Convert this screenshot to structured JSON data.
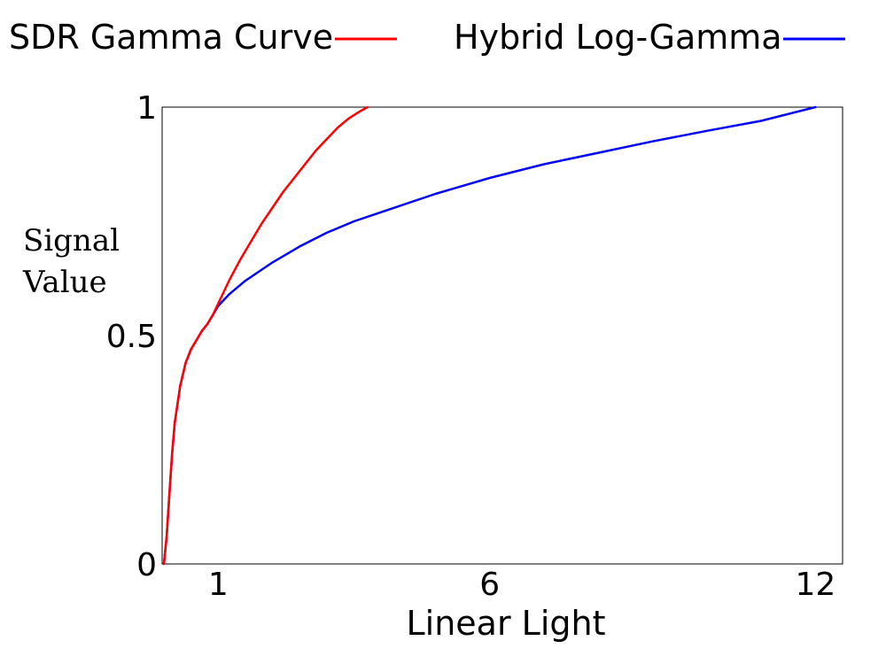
{
  "chart_data": {
    "type": "line",
    "title": "",
    "xlabel": "Linear Light",
    "ylabel_lines": [
      "Signal",
      "Value"
    ],
    "xlim": [
      0,
      12.5
    ],
    "ylim": [
      0,
      1
    ],
    "grid": false,
    "legend_position": "top",
    "x_ticks": [
      {
        "value": 1,
        "label": "1"
      },
      {
        "value": 6,
        "label": "6"
      },
      {
        "value": 12,
        "label": "12"
      }
    ],
    "y_ticks": [
      {
        "value": 0,
        "label": "0"
      },
      {
        "value": 0.5,
        "label": "0.5"
      },
      {
        "value": 1,
        "label": "1"
      }
    ],
    "series": [
      {
        "name": "SDR Gamma Curve",
        "color": "#ff0000",
        "x": [
          0,
          0.05,
          0.1,
          0.15,
          0.2,
          0.3,
          0.4,
          0.5,
          0.6,
          0.7,
          0.8,
          0.9,
          1.0,
          1.2,
          1.4,
          1.6,
          1.8,
          2.0,
          2.2,
          2.4,
          2.6,
          2.8,
          3.0,
          3.2,
          3.4,
          3.6,
          3.75
        ],
        "y": [
          0,
          0.06,
          0.15,
          0.24,
          0.31,
          0.39,
          0.44,
          0.47,
          0.49,
          0.51,
          0.525,
          0.545,
          0.57,
          0.62,
          0.665,
          0.705,
          0.745,
          0.78,
          0.815,
          0.845,
          0.875,
          0.905,
          0.93,
          0.955,
          0.975,
          0.99,
          1.0
        ]
      },
      {
        "name": "Hybrid Log-Gamma",
        "color": "#0000ff",
        "x": [
          0,
          0.05,
          0.1,
          0.15,
          0.2,
          0.3,
          0.4,
          0.5,
          0.6,
          0.7,
          0.8,
          0.9,
          1.0,
          1.2,
          1.5,
          2.0,
          2.5,
          3.0,
          3.5,
          4.0,
          5.0,
          6.0,
          7.0,
          8.0,
          9.0,
          10.0,
          11.0,
          12.0
        ],
        "y": [
          0,
          0.06,
          0.15,
          0.24,
          0.31,
          0.39,
          0.44,
          0.47,
          0.49,
          0.51,
          0.525,
          0.545,
          0.565,
          0.59,
          0.62,
          0.66,
          0.695,
          0.725,
          0.75,
          0.77,
          0.81,
          0.845,
          0.875,
          0.9,
          0.925,
          0.948,
          0.97,
          1.0
        ]
      }
    ]
  }
}
